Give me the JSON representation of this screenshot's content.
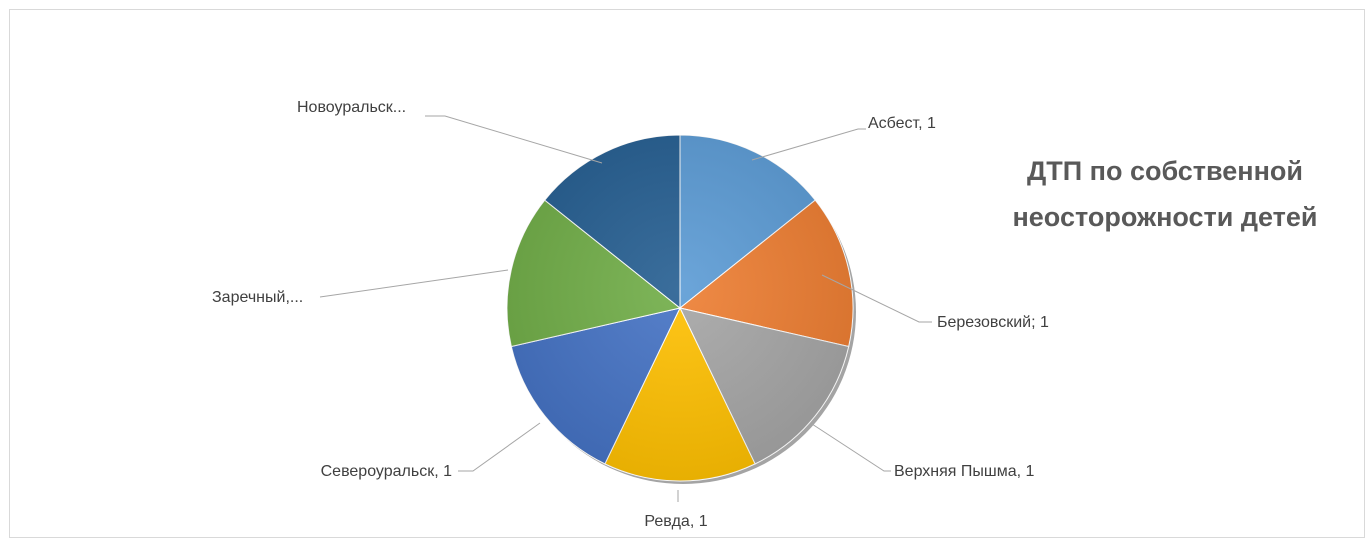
{
  "chart_data": {
    "type": "pie",
    "title": "ДТП по собственной неосторожности детей",
    "legend": "none",
    "categories": [
      "Асбест",
      "Березовский",
      "Верхняя Пышма",
      "Ревда",
      "Североуральск",
      "Заречный",
      "Новоуральск"
    ],
    "values": [
      1,
      1,
      1,
      1,
      1,
      1,
      1
    ],
    "labels": [
      "Асбест, 1",
      "Березовский; 1",
      "Верхняя Пышма, 1",
      "Ревда, 1",
      "Североуральск, 1",
      "Заречный,...",
      "Новоуральск..."
    ],
    "colors": [
      "#5b9bd5",
      "#ed7d31",
      "#a5a5a5",
      "#ffc000",
      "#4472c4",
      "#70ad47",
      "#255e91"
    ]
  }
}
